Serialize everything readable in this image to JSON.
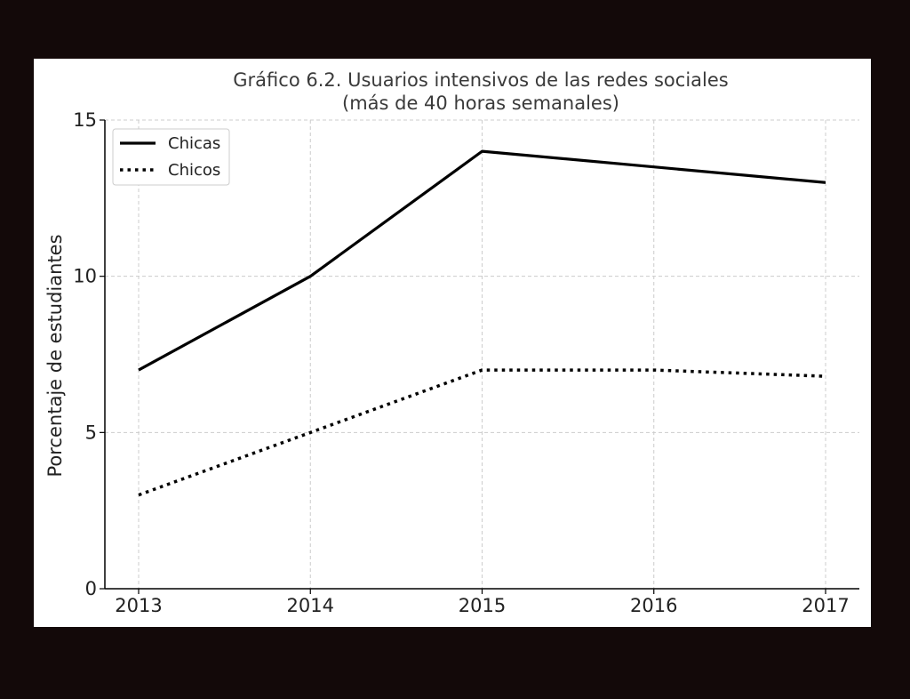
{
  "chart_data": {
    "type": "line",
    "title": "Gráfico 6.2. Usuarios intensivos de las redes sociales",
    "subtitle": "(más de 40 horas semanales)",
    "xlabel": "",
    "ylabel": "Porcentaje de estudiantes",
    "x": [
      2013,
      2014,
      2015,
      2016,
      2017
    ],
    "x_tick_labels": [
      "2013",
      "2014",
      "2015",
      "2016",
      "2017"
    ],
    "y_ticks": [
      0,
      5,
      10,
      15
    ],
    "y_tick_labels": [
      "0",
      "5",
      "10",
      "15"
    ],
    "ylim": [
      0,
      15
    ],
    "grid": true,
    "legend_position": "top-left",
    "series": [
      {
        "name": "Chicas",
        "values": [
          7,
          10,
          14,
          13.5,
          13
        ],
        "line_style": "solid",
        "color": "#000000"
      },
      {
        "name": "Chicos",
        "values": [
          3,
          5,
          7,
          7,
          6.8
        ],
        "line_style": "dotted",
        "color": "#000000"
      }
    ]
  },
  "colors": {
    "background": "#130909",
    "panel": "#ffffff",
    "grid": "#cccccc",
    "line": "#000000"
  }
}
